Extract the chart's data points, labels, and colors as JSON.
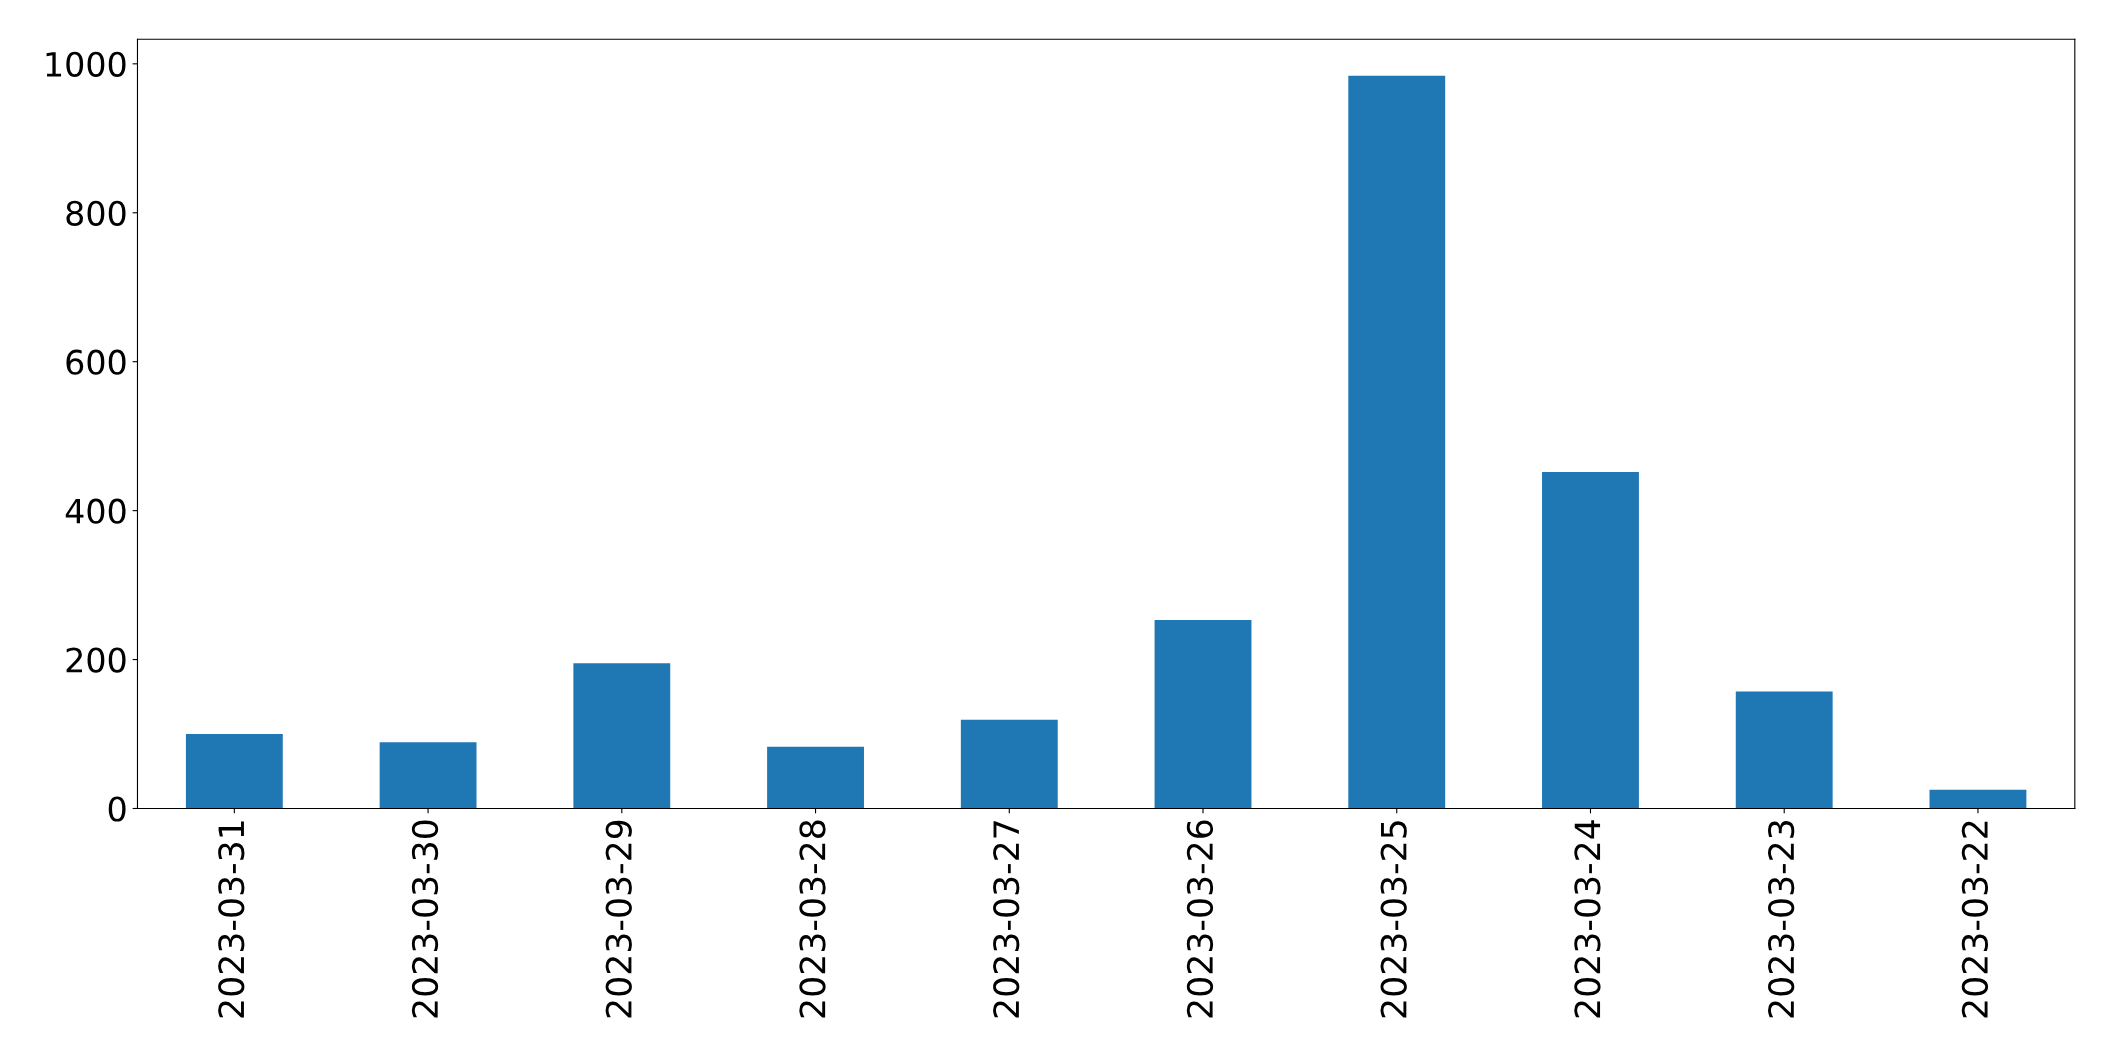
{
  "chart_data": {
    "type": "bar",
    "categories": [
      "2023-03-31",
      "2023-03-30",
      "2023-03-29",
      "2023-03-28",
      "2023-03-27",
      "2023-03-26",
      "2023-03-25",
      "2023-03-24",
      "2023-03-23",
      "2023-03-22"
    ],
    "values": [
      100,
      89,
      195,
      83,
      119,
      253,
      984,
      452,
      157,
      25
    ],
    "color": "#1f77b4",
    "ylim": [
      0,
      1033
    ],
    "yticks": [
      0,
      200,
      400,
      600,
      800,
      1000
    ],
    "grid": false
  }
}
